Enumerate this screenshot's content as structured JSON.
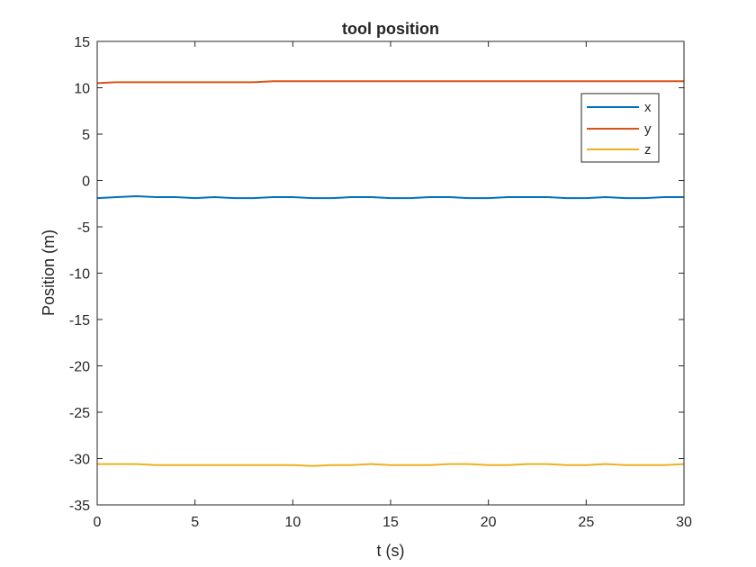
{
  "chart_data": {
    "type": "line",
    "title": "tool position",
    "xlabel": "t (s)",
    "ylabel": "Position (m)",
    "xlim": [
      0,
      30
    ],
    "ylim": [
      -35,
      15
    ],
    "xticks": [
      0,
      5,
      10,
      15,
      20,
      25,
      30
    ],
    "yticks": [
      -35,
      -30,
      -25,
      -20,
      -15,
      -10,
      -5,
      0,
      5,
      10,
      15
    ],
    "grid": false,
    "legend_position": "top-right",
    "x": [
      0,
      1,
      2,
      3,
      4,
      5,
      6,
      7,
      8,
      9,
      10,
      11,
      12,
      13,
      14,
      15,
      16,
      17,
      18,
      19,
      20,
      21,
      22,
      23,
      24,
      25,
      26,
      27,
      28,
      29,
      30
    ],
    "series": [
      {
        "name": "x",
        "color": "#0072BD",
        "values": [
          -1.9,
          -1.8,
          -1.7,
          -1.8,
          -1.8,
          -1.9,
          -1.8,
          -1.9,
          -1.9,
          -1.8,
          -1.8,
          -1.9,
          -1.9,
          -1.8,
          -1.8,
          -1.9,
          -1.9,
          -1.8,
          -1.8,
          -1.9,
          -1.9,
          -1.8,
          -1.8,
          -1.8,
          -1.9,
          -1.9,
          -1.8,
          -1.9,
          -1.9,
          -1.8,
          -1.8
        ]
      },
      {
        "name": "y",
        "color": "#D95319",
        "values": [
          10.5,
          10.6,
          10.6,
          10.6,
          10.6,
          10.6,
          10.6,
          10.6,
          10.6,
          10.7,
          10.7,
          10.7,
          10.7,
          10.7,
          10.7,
          10.7,
          10.7,
          10.7,
          10.7,
          10.7,
          10.7,
          10.7,
          10.7,
          10.7,
          10.7,
          10.7,
          10.7,
          10.7,
          10.7,
          10.7,
          10.7
        ]
      },
      {
        "name": "z",
        "color": "#EDB120",
        "values": [
          -30.6,
          -30.6,
          -30.6,
          -30.7,
          -30.7,
          -30.7,
          -30.7,
          -30.7,
          -30.7,
          -30.7,
          -30.7,
          -30.8,
          -30.7,
          -30.7,
          -30.6,
          -30.7,
          -30.7,
          -30.7,
          -30.6,
          -30.6,
          -30.7,
          -30.7,
          -30.6,
          -30.6,
          -30.7,
          -30.7,
          -30.6,
          -30.7,
          -30.7,
          -30.7,
          -30.6
        ]
      }
    ]
  }
}
